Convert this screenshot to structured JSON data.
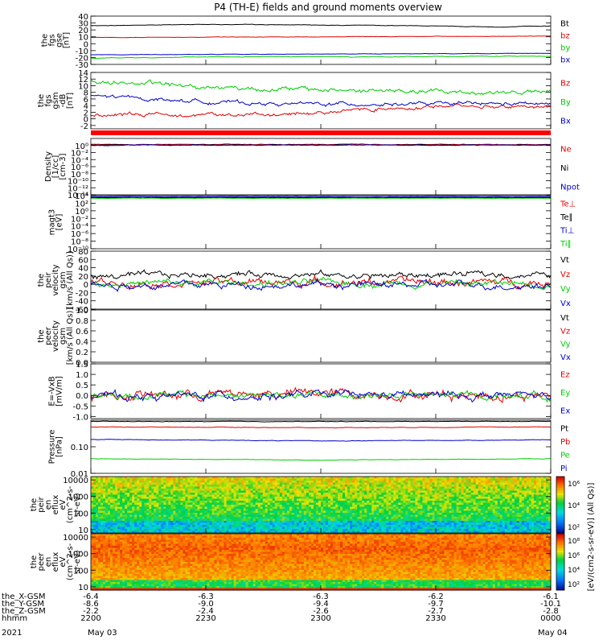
{
  "title": "P4 (TH-E) fields and ground moments overview",
  "colors": {
    "black": "#000000",
    "red": "#e00000",
    "green": "#00cc00",
    "blue": "#0000cc",
    "bar": "#ff0000"
  },
  "colorbars": {
    "eflux_i": {
      "ticks": [
        "10⁶",
        "10⁴",
        "10²"
      ],
      "title": "[eV/(cm2-s-sr-eV)] (All Qs)]"
    },
    "eflux_e": {
      "ticks": [
        "10⁸",
        "10⁶",
        "10⁴",
        "10²"
      ],
      "title": "[eV/(cm2-s-sr-eV)] (All Qs)]"
    }
  },
  "xaxis": {
    "rows": [
      {
        "label": "the_X-GSM",
        "values": [
          "-6.4",
          "-6.3",
          "-6.3",
          "-6.2",
          "-6.1"
        ]
      },
      {
        "label": "the_Y-GSM",
        "values": [
          "-8.6",
          "-9.0",
          "-9.4",
          "-9.7",
          "-10.1"
        ]
      },
      {
        "label": "the_Z-GSM",
        "values": [
          "-2.2",
          "-2.4",
          "-2.6",
          "-2.7",
          "-2.8"
        ]
      },
      {
        "label": "hhmm",
        "values": [
          "2200",
          "2230",
          "2300",
          "2330",
          "0000"
        ]
      }
    ],
    "date_left": "May 03",
    "date_right": "May 04",
    "year": "2021"
  },
  "chart_data": [
    {
      "id": "fgs",
      "type": "line",
      "ylabel": [
        "the",
        "fgs",
        "gse",
        "[nT]"
      ],
      "ylim": [
        -30,
        40
      ],
      "ticks": [
        {
          "v": 40,
          "t": "40"
        },
        {
          "v": 30,
          "t": "30"
        },
        {
          "v": 20,
          "t": "20"
        },
        {
          "v": 10,
          "t": "10"
        },
        {
          "v": 0,
          "t": "0"
        },
        {
          "v": -10,
          "t": "-10"
        },
        {
          "v": -20,
          "t": "-20"
        },
        {
          "v": -30,
          "t": "-30"
        }
      ],
      "series": [
        {
          "name": "Bt",
          "color": "black",
          "x": [
            0,
            0.25,
            0.5,
            0.75,
            0.9,
            1
          ],
          "y": [
            26,
            28,
            27,
            26,
            24,
            26
          ],
          "noise": 0.4
        },
        {
          "name": "bz",
          "color": "red",
          "x": [
            0,
            0.5,
            1
          ],
          "y": [
            9,
            10,
            11
          ],
          "noise": 0.3
        },
        {
          "name": "by",
          "color": "green",
          "x": [
            0,
            0.3,
            0.6,
            1
          ],
          "y": [
            -21,
            -19,
            -19,
            -18
          ],
          "noise": 0.5
        },
        {
          "name": "bx",
          "color": "blue",
          "x": [
            0,
            0.5,
            1
          ],
          "y": [
            -16,
            -15,
            -14
          ],
          "noise": 0.3
        }
      ]
    },
    {
      "id": "fgs_sm",
      "type": "line",
      "ylabel": [
        "the",
        "fgs",
        "gsm",
        "-dB",
        "[nT]"
      ],
      "ylim": [
        -3,
        14
      ],
      "ticks": [
        {
          "v": 14,
          "t": "14"
        },
        {
          "v": 12,
          "t": "12"
        },
        {
          "v": 10,
          "t": "10"
        },
        {
          "v": 8,
          "t": "8"
        },
        {
          "v": 6,
          "t": "6"
        },
        {
          "v": 4,
          "t": "4"
        },
        {
          "v": 2,
          "t": "2"
        },
        {
          "v": 0,
          "t": "0"
        },
        {
          "v": -2,
          "t": "-2"
        }
      ],
      "series": [
        {
          "name": "Bz",
          "color": "red",
          "x": [
            0,
            0.2,
            0.4,
            0.6,
            0.8,
            1
          ],
          "y": [
            1,
            1.5,
            1,
            3,
            4,
            3.5
          ],
          "noise": 0.6
        },
        {
          "name": "By",
          "color": "green",
          "x": [
            0,
            0.2,
            0.4,
            0.6,
            0.8,
            1
          ],
          "y": [
            11.5,
            10,
            9,
            8.5,
            8,
            8
          ],
          "noise": 0.8
        },
        {
          "name": "Bx",
          "color": "blue",
          "x": [
            0,
            0.2,
            0.4,
            0.6,
            0.8,
            1
          ],
          "y": [
            7,
            5.5,
            4.5,
            4.5,
            4.5,
            4.5
          ],
          "noise": 0.6
        }
      ]
    },
    {
      "id": "density",
      "type": "line",
      "log": true,
      "ylabel": [
        "Density",
        "[1/cc]",
        "[cm-3]"
      ],
      "ylim": [
        -14,
        2
      ],
      "ticks": [
        {
          "v": 0,
          "t": "10⁰"
        },
        {
          "v": -2,
          "t": "10⁻²"
        },
        {
          "v": -4,
          "t": "10⁻⁴"
        },
        {
          "v": -6,
          "t": "10⁻⁶"
        },
        {
          "v": -8,
          "t": "10⁻⁸"
        },
        {
          "v": -10,
          "t": "10⁻¹⁰"
        },
        {
          "v": -12,
          "t": "10⁻¹²"
        },
        {
          "v": -14,
          "t": "10⁻¹⁴"
        }
      ],
      "series": [
        {
          "name": "Ne",
          "color": "red",
          "x": [
            0,
            1
          ],
          "y": [
            0.3,
            0.3
          ],
          "noise": 0.1
        },
        {
          "name": "Ni",
          "color": "black",
          "x": [
            0,
            1
          ],
          "y": [
            0.2,
            0.2
          ],
          "noise": 0.1
        },
        {
          "name": "Npot",
          "color": "blue",
          "x": [
            0,
            1
          ],
          "y": [
            0.1,
            0.1
          ],
          "noise": 0.1
        }
      ]
    },
    {
      "id": "temp",
      "type": "line",
      "log": true,
      "ylabel": [
        "magt3",
        "[eV]"
      ],
      "ylim": [
        -10,
        4
      ],
      "ticks": [
        {
          "v": 4,
          "t": "10⁴"
        },
        {
          "v": 2,
          "t": "10²"
        },
        {
          "v": 0,
          "t": "10⁰"
        },
        {
          "v": -2,
          "t": "10⁻²"
        },
        {
          "v": -4,
          "t": "10⁻⁴"
        },
        {
          "v": -6,
          "t": "10⁻⁶"
        },
        {
          "v": -8,
          "t": "10⁻⁸"
        },
        {
          "v": -10,
          "t": "10⁻¹⁰"
        }
      ],
      "series": [
        {
          "name": "Te⊥",
          "color": "red",
          "x": [
            0,
            1
          ],
          "y": [
            3.4,
            3.4
          ],
          "noise": 0.05
        },
        {
          "name": "Te∥",
          "color": "black",
          "x": [
            0,
            1
          ],
          "y": [
            3.5,
            3.5
          ],
          "noise": 0.05
        },
        {
          "name": "Ti⊥",
          "color": "blue",
          "x": [
            0,
            1
          ],
          "y": [
            3.7,
            3.7
          ],
          "noise": 0.05
        },
        {
          "name": "Ti∥",
          "color": "green",
          "x": [
            0,
            1
          ],
          "y": [
            3.3,
            3.3
          ],
          "noise": 0.05
        }
      ]
    },
    {
      "id": "peir_vel",
      "type": "line",
      "ylabel": [
        "the",
        "peir",
        "velocity",
        "gsm",
        "[km/s (All Qs)]"
      ],
      "ylim": [
        -60,
        80
      ],
      "ticks": [
        {
          "v": 80,
          "t": "80"
        },
        {
          "v": 60,
          "t": "60"
        },
        {
          "v": 40,
          "t": "40"
        },
        {
          "v": 20,
          "t": "20"
        },
        {
          "v": 0,
          "t": "0"
        },
        {
          "v": -20,
          "t": "-20"
        },
        {
          "v": -40,
          "t": "-40"
        },
        {
          "v": -60,
          "t": "-60"
        }
      ],
      "series": [
        {
          "name": "Vt",
          "color": "black",
          "x": [
            0,
            0.2,
            0.4,
            0.6,
            0.8,
            1
          ],
          "y": [
            18,
            22,
            26,
            20,
            24,
            22
          ],
          "noise": 8
        },
        {
          "name": "Vz",
          "color": "red",
          "x": [
            0,
            0.5,
            1
          ],
          "y": [
            5,
            5,
            5
          ],
          "noise": 10
        },
        {
          "name": "Vy",
          "color": "green",
          "x": [
            0,
            0.5,
            1
          ],
          "y": [
            2,
            3,
            2
          ],
          "noise": 9
        },
        {
          "name": "Vx",
          "color": "blue",
          "x": [
            0,
            0.5,
            1
          ],
          "y": [
            -2,
            -1,
            -3
          ],
          "noise": 9
        }
      ]
    },
    {
      "id": "peer_vel",
      "type": "line",
      "ylabel": [
        "the",
        "peer",
        "velocity",
        "gsm",
        "[km/s (All Qs)]"
      ],
      "ylim": [
        0,
        1
      ],
      "ticks": [
        {
          "v": 1,
          "t": "1.0"
        },
        {
          "v": 0.8,
          "t": "0.8"
        },
        {
          "v": 0.6,
          "t": "0.6"
        },
        {
          "v": 0.4,
          "t": "0.4"
        },
        {
          "v": 0.2,
          "t": "0.2"
        },
        {
          "v": 0,
          "t": "0.0"
        }
      ],
      "series": [
        {
          "name": "Vt",
          "color": "black",
          "x": [],
          "y": [],
          "noise": 0
        },
        {
          "name": "Vz",
          "color": "red",
          "x": [],
          "y": [],
          "noise": 0
        },
        {
          "name": "Vy",
          "color": "green",
          "x": [],
          "y": [],
          "noise": 0
        },
        {
          "name": "Vx",
          "color": "blue",
          "x": [],
          "y": [],
          "noise": 0
        }
      ]
    },
    {
      "id": "efield",
      "type": "line",
      "ylabel": [
        "E=-VxB",
        "[mV/m]"
      ],
      "ylim": [
        -1.1,
        1.5
      ],
      "ticks": [
        {
          "v": 1.5,
          "t": "1.5"
        },
        {
          "v": 1,
          "t": "1.0"
        },
        {
          "v": 0.5,
          "t": "0.5"
        },
        {
          "v": 0,
          "t": "0.0"
        },
        {
          "v": -0.5,
          "t": "-0.5"
        },
        {
          "v": -1,
          "t": "-1.0"
        }
      ],
      "series": [
        {
          "name": "Ez",
          "color": "red",
          "x": [
            0,
            0.5,
            1
          ],
          "y": [
            0,
            0.1,
            0
          ],
          "noise": 0.25
        },
        {
          "name": "Ey",
          "color": "green",
          "x": [
            0,
            0.5,
            1
          ],
          "y": [
            0,
            0,
            0
          ],
          "noise": 0.18
        },
        {
          "name": "Ex",
          "color": "blue",
          "x": [
            0,
            0.5,
            1
          ],
          "y": [
            -0.05,
            0,
            0
          ],
          "noise": 0.2
        }
      ]
    },
    {
      "id": "pressure",
      "type": "line",
      "log": true,
      "ylabel": [
        "Pressure",
        "[nPa]"
      ],
      "ylim": [
        -2,
        0
      ],
      "ticks": [
        {
          "v": -1,
          "t": "0.10"
        },
        {
          "v": -2,
          "t": "0.01"
        }
      ],
      "series": [
        {
          "name": "Pt",
          "color": "black",
          "x": [
            0,
            0.5,
            1
          ],
          "y": [
            -0.05,
            -0.05,
            -0.04
          ],
          "noise": 0.01
        },
        {
          "name": "Pb",
          "color": "red",
          "x": [
            0,
            0.5,
            1
          ],
          "y": [
            -0.25,
            -0.28,
            -0.25
          ],
          "noise": 0.01
        },
        {
          "name": "Pe",
          "color": "green",
          "x": [
            0,
            0.5,
            1
          ],
          "y": [
            -1.45,
            -1.5,
            -1.45
          ],
          "noise": 0.01
        },
        {
          "name": "Pi",
          "color": "blue",
          "x": [
            0,
            0.5,
            1
          ],
          "y": [
            -0.72,
            -0.78,
            -0.74
          ],
          "noise": 0.01
        }
      ]
    },
    {
      "id": "peir_eflux",
      "type": "heatmap",
      "ylabel": [
        "the",
        "peir",
        "en",
        "eflux",
        "eV",
        "(cm^2-s-",
        "sr-eV)"
      ],
      "ylim": [
        0.8,
        4.2
      ],
      "ticks": [
        {
          "v": 4,
          "t": "10000"
        },
        {
          "v": 3,
          "t": "1000"
        },
        {
          "v": 2,
          "t": "100"
        },
        {
          "v": 1,
          "t": "10"
        }
      ]
    },
    {
      "id": "peer_eflux",
      "type": "heatmap",
      "ylabel": [
        "the",
        "peer",
        "en",
        "eflux",
        "eV",
        "(cm^2-s-",
        "sr-eV)"
      ],
      "ylim": [
        0.8,
        4.2
      ],
      "ticks": [
        {
          "v": 4,
          "t": "10000"
        },
        {
          "v": 3,
          "t": "1000"
        },
        {
          "v": 2,
          "t": "100"
        },
        {
          "v": 1,
          "t": "10"
        }
      ]
    }
  ]
}
